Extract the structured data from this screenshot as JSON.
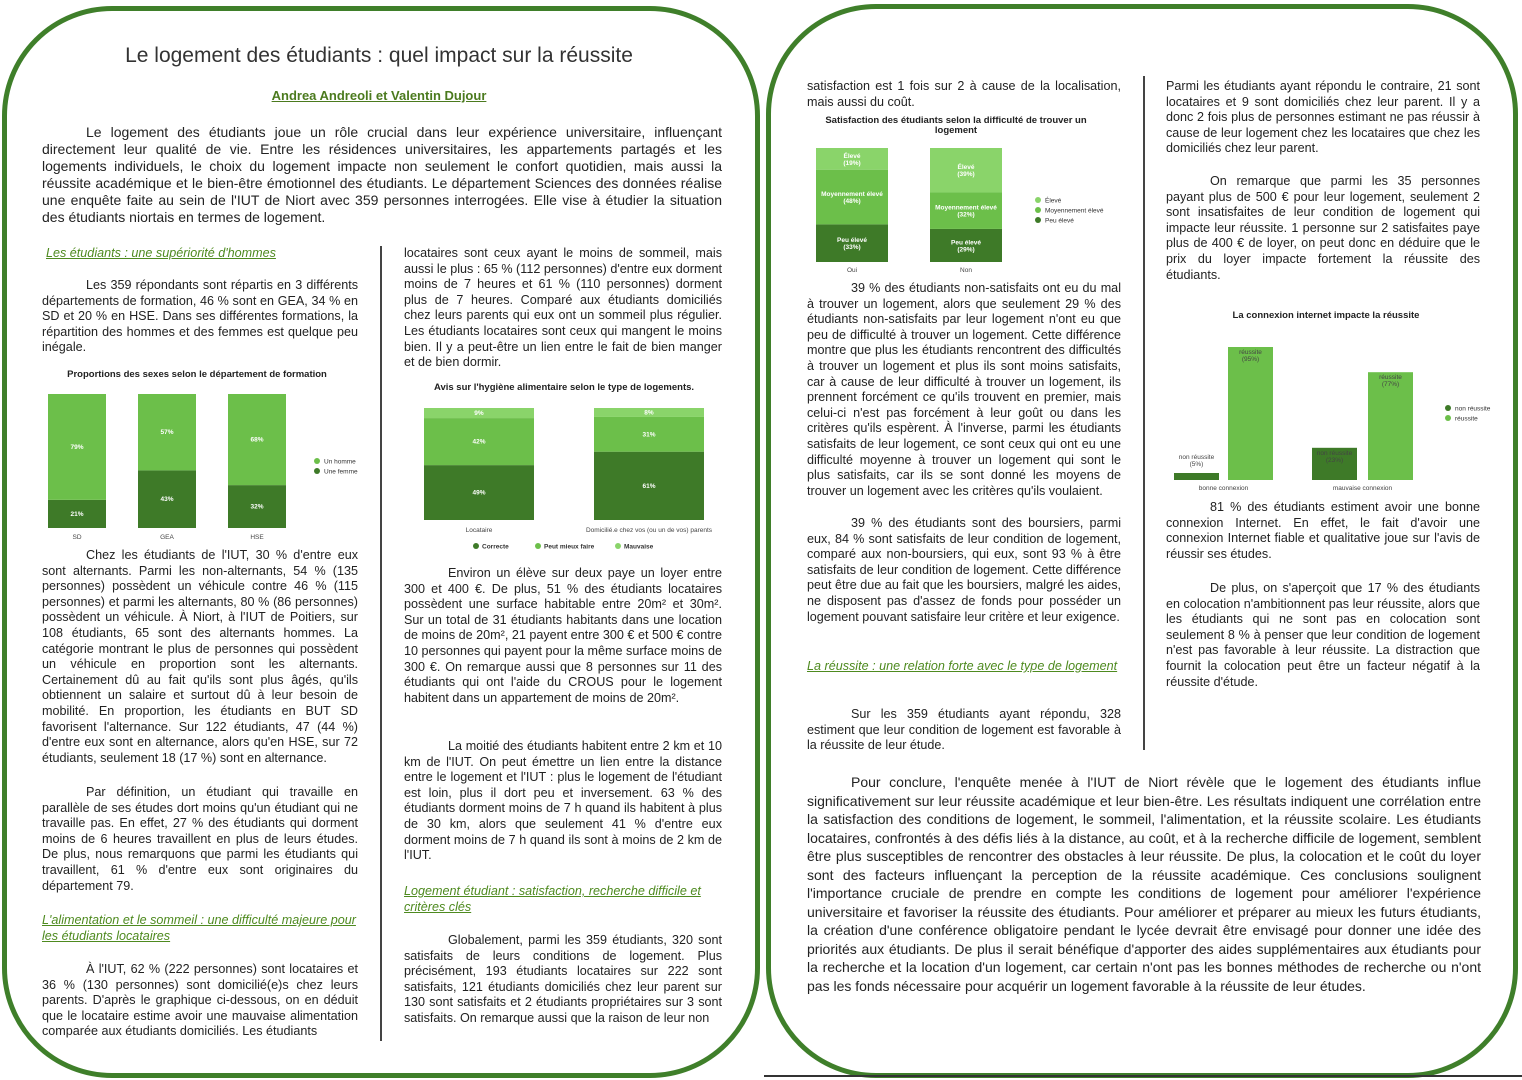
{
  "colors": {
    "frame": "#3f7f2a",
    "dark": "#3e7a28",
    "mid": "#6cbf4a",
    "light": "#8ad46a",
    "heading": "#4e8a1f"
  },
  "doc": {
    "title": "Le logement des étudiants : quel impact sur la réussite",
    "authors": "Andrea Andreoli et Valentin Dujour",
    "intro": "Le logement des étudiants joue un rôle crucial dans leur expérience universitaire, influençant directement leur qualité de vie. Entre les résidences universitaires, les appartements partagés et les logements individuels, le choix du logement impacte non seulement le confort quotidien, mais aussi la réussite académique et le bien-être émotionnel des étudiants. Le département Sciences des données réalise une enquête faite au sein de l'IUT de Niort avec 359 personnes interrogées. Elle vise à étudier la situation des étudiants niortais en termes de logement."
  },
  "col1": {
    "h1": "Les étudiants : une supériorité d'hommes",
    "p1": "Les 359 répondants sont répartis en 3 différents départements de formation, 46 % sont en GEA, 34 % en SD et 20 % en HSE. Dans ses différentes formations, la répartition des hommes et des femmes est quelque peu inégale.",
    "p2": "Chez les étudiants de l'IUT, 30 % d'entre eux sont alternants. Parmi les non-alternants, 54 % (135 personnes) possèdent un véhicule contre 46 % (115 personnes) et parmi les alternants, 80 % (86 personnes) possèdent un véhicule. À Niort, à l'IUT de Poitiers, sur 108 étudiants, 65 sont des alternants hommes. La catégorie montrant le plus de personnes qui possèdent un véhicule en proportion sont les alternants. Certainement dû au fait qu'ils sont plus âgés, qu'ils obtiennent un salaire et surtout dû à leur besoin de mobilité. En proportion, les étudiants en BUT SD favorisent l'alternance. Sur 122 étudiants, 47 (44 %) d'entre eux sont en alternance, alors qu'en HSE, sur 72 étudiants, seulement 18 (17 %) sont en alternance.",
    "p3": "Par définition, un étudiant qui travaille en parallèle de ses études dort moins qu'un étudiant qui ne travaille pas. En effet, 27 % des étudiants qui dorment moins de 6 heures travaillent en plus de leurs études. De plus, nous remarquons que parmi les étudiants qui travaillent, 61 % d'entre eux sont originaires du département 79.",
    "h2": "L'alimentation et le sommeil : une difficulté majeure pour les étudiants locataires",
    "p4": "À l'IUT, 62 % (222 personnes) sont locataires et 36 % (130 personnes) sont domicilié(e)s chez leurs parents. D'après le graphique ci-dessous, on en déduit que le locataire estime avoir une mauvaise alimentation comparée aux étudiants domiciliés. Les étudiants"
  },
  "col2": {
    "p1": "locataires sont ceux ayant le moins de sommeil, mais aussi le plus : 65 % (112 personnes) d'entre eux dorment moins de 7 heures et 61 % (110 personnes) dorment plus de 7 heures. Comparé aux étudiants domiciliés chez leurs parents qui eux ont un sommeil plus régulier. Les étudiants locataires sont ceux qui mangent le moins bien. Il y a peut-être un lien entre le fait de bien manger et de bien dormir.",
    "p2": "Environ un élève sur deux paye un loyer entre 300 et 400 €. De plus, 51 % des étudiants locataires possèdent une surface habitable entre 20m² et 30m². Sur un total de 31 étudiants habitants dans une location de moins de 20m², 21 payent entre 300 € et 500 € contre 10 personnes qui payent pour la même surface moins de 300 €. On remarque aussi que 8 personnes sur 11 des étudiants qui ont l'aide du CROUS pour le logement habitent dans un appartement de moins de 20m².",
    "p3": "La moitié des étudiants habitent entre 2 km et 10 km de l'IUT. On peut émettre un lien entre la distance entre le logement et l'IUT : plus le logement de l'étudiant est loin, plus il dort peu et inversement. 63 % des étudiants dorment moins de 7 h quand ils habitent à plus de 30 km, alors que seulement 41 % d'entre eux dorment moins de 7 h quand ils sont à moins de 2 km de l'IUT.",
    "h1": "Logement étudiant : satisfaction, recherche difficile et critères clés",
    "p4": "Globalement, parmi les 359 étudiants, 320 sont satisfaits de leurs conditions de logement. Plus précisément, 193 étudiants locataires sur 222 sont satisfaits, 121 étudiants domiciliés chez leur parent sur 130 sont satisfaits et 2 étudiants propriétaires sur 3 sont satisfaits. On remarque aussi que la raison de leur non"
  },
  "col3": {
    "p1": "satisfaction est 1 fois sur 2 à cause de la localisation, mais aussi du coût.",
    "p2": "39 % des étudiants non-satisfaits ont eu du mal à trouver un logement, alors que seulement 29 % des étudiants non-satisfaits par leur logement n'ont eu que peu de difficulté à trouver un logement. Cette différence montre que plus les étudiants rencontrent des difficultés à trouver un logement et plus ils sont moins satisfaits, car à cause de leur difficulté à trouver un logement, ils prennent forcément ce qu'ils trouvent en premier, mais celui-ci n'est pas forcément à leur goût ou dans les critères qu'ils espèrent. À l'inverse, parmi les étudiants satisfaits de leur logement, ce sont ceux qui ont eu une difficulté moyenne à trouver un logement qui sont le plus satisfaits, car ils se sont donné les moyens de trouver un logement avec les critères qu'ils voulaient.",
    "p3": "39 % des étudiants sont des boursiers, parmi eux, 84 % sont satisfaits de leur condition de logement, comparé aux non-boursiers, qui eux, sont 93 % à être satisfaits de leur condition de logement. Cette différence peut être due au fait que les boursiers, malgré les aides, ne disposent pas d'assez de fonds pour posséder un logement pouvant satisfaire leur critère et leur exigence.",
    "h1": "La réussite : une relation forte avec le type de logement",
    "p4": "Sur les 359 étudiants ayant répondu, 328 estiment que leur condition de logement est favorable à la réussite de leur étude."
  },
  "col4": {
    "p1": "Parmi les étudiants ayant répondu le contraire, 21 sont locataires et 9 sont domiciliés chez leur parent. Il y a donc 2 fois plus de personnes estimant ne pas réussir à cause de leur logement chez les locataires que chez les domiciliés chez leur parent.",
    "p2": "On remarque que parmi les 35 personnes payant plus de 500 € pour leur logement, seulement 2 sont insatisfaites de leur condition de logement qui impacte leur réussite. 1 personne sur 2 satisfaites paye plus de 400 € de loyer, on peut donc en déduire que le prix du loyer impacte fortement la réussite des étudiants.",
    "p3": "81 % des étudiants estiment avoir une bonne connexion Internet. En effet, le fait d'avoir une connexion Internet fiable et qualitative joue sur l'avis de réussir ses études.",
    "p4": "De plus, on s'aperçoit que 17 % des étudiants en colocation n'ambitionnent pas leur réussite, alors que les étudiants qui ne sont pas en colocation sont seulement 8 % à penser que leur condition de logement n'est pas favorable à leur réussite. La distraction que fournit la colocation peut être un facteur négatif à la réussite d'étude."
  },
  "conclusion": "Pour conclure, l'enquête menée à l'IUT de Niort révèle que le logement des étudiants influe significativement sur leur réussite académique et leur bien-être. Les résultats indiquent une corrélation entre la satisfaction des conditions de logement, le sommeil, l'alimentation, et la réussite scolaire. Les étudiants locataires, confrontés à des défis liés à la distance, au coût, et à la recherche difficile de logement, semblent être plus susceptibles de rencontrer des obstacles à leur réussite. De plus, la colocation et le coût du loyer sont des facteurs influençant la perception de la réussite académique. Ces conclusions soulignent l'importance cruciale de prendre en compte les conditions de logement pour améliorer l'expérience universitaire et favoriser la réussite des étudiants. Pour améliorer et préparer au mieux les futurs étudiants, la création d'une conférence obligatoire pendant le lycée devrait être envisagé pour donner une idée des priorités aux étudiants. De plus il serait bénéfique d'apporter des aides supplémentaires aux étudiants pour la recherche et la location d'un logement, car certain n'ont pas les bonnes méthodes de recherche ou n'ont pas les fonds nécessaire pour acquérir un logement favorable à la réussite de leur études.",
  "chart_data": [
    {
      "id": "sexes",
      "type": "bar",
      "stacked": true,
      "title": "Proportions des sexes selon le département de formation",
      "categories": [
        "SD",
        "GEA",
        "HSE"
      ],
      "series": [
        {
          "name": "Une femme",
          "values": [
            21,
            43,
            32
          ],
          "labels": [
            "21%",
            "43%",
            "32%"
          ]
        },
        {
          "name": "Un homme",
          "values": [
            79,
            57,
            68
          ],
          "labels": [
            "79%",
            "57%",
            "68%"
          ]
        }
      ],
      "legend": [
        "Un homme",
        "Une femme"
      ],
      "legend_position": "right"
    },
    {
      "id": "hygiene",
      "type": "bar",
      "stacked": true,
      "title": "Avis sur l'hygiène alimentaire selon le type de logements.",
      "categories": [
        "Locataire",
        "Domicilié.e chez vos (ou un de vos) parents"
      ],
      "series": [
        {
          "name": "Correcte",
          "values": [
            49,
            61
          ],
          "labels": [
            "49%",
            "61%"
          ]
        },
        {
          "name": "Peut mieux faire",
          "values": [
            42,
            31
          ],
          "labels": [
            "42%",
            "31%"
          ]
        },
        {
          "name": "Mauvaise",
          "values": [
            9,
            8
          ],
          "labels": [
            "9%",
            "8%"
          ]
        }
      ],
      "legend": [
        "Correcte",
        "Peut mieux faire",
        "Mauvaise"
      ],
      "legend_position": "bottom"
    },
    {
      "id": "satisfaction",
      "type": "bar",
      "stacked": true,
      "title": "Satisfaction des étudiants selon la difficulté de trouver un logement",
      "categories": [
        "Oui",
        "Non"
      ],
      "series": [
        {
          "name": "Peu élevé",
          "values": [
            33,
            29
          ],
          "labels": [
            "Peu élevé (33%)",
            "Peu élevé (29%)"
          ]
        },
        {
          "name": "Moyennement élevé",
          "values": [
            48,
            32
          ],
          "labels": [
            "Moyennement élevé (48%)",
            "Moyennement élevé (32%)"
          ]
        },
        {
          "name": "Élevé",
          "values": [
            19,
            39
          ],
          "labels": [
            "Élevé (19%)",
            "Élevé (39%)"
          ]
        }
      ],
      "legend": [
        "Élevé",
        "Moyennement élevé",
        "Peu élevé"
      ],
      "legend_position": "right"
    },
    {
      "id": "internet",
      "type": "bar",
      "title": "La connexion internet impacte la réussite",
      "categories": [
        "bonne connexion",
        "mauvaise connexion"
      ],
      "series": [
        {
          "name": "non réussite",
          "values": [
            5,
            23
          ],
          "labels": [
            "non réussite (5%)",
            "non réussite (23%)"
          ]
        },
        {
          "name": "réussite",
          "values": [
            95,
            77
          ],
          "labels": [
            "réussite (95%)",
            "réussite (77%)"
          ]
        }
      ],
      "ylim": [
        0,
        100
      ],
      "legend": [
        "non réussite",
        "réussite"
      ],
      "legend_position": "right"
    }
  ]
}
